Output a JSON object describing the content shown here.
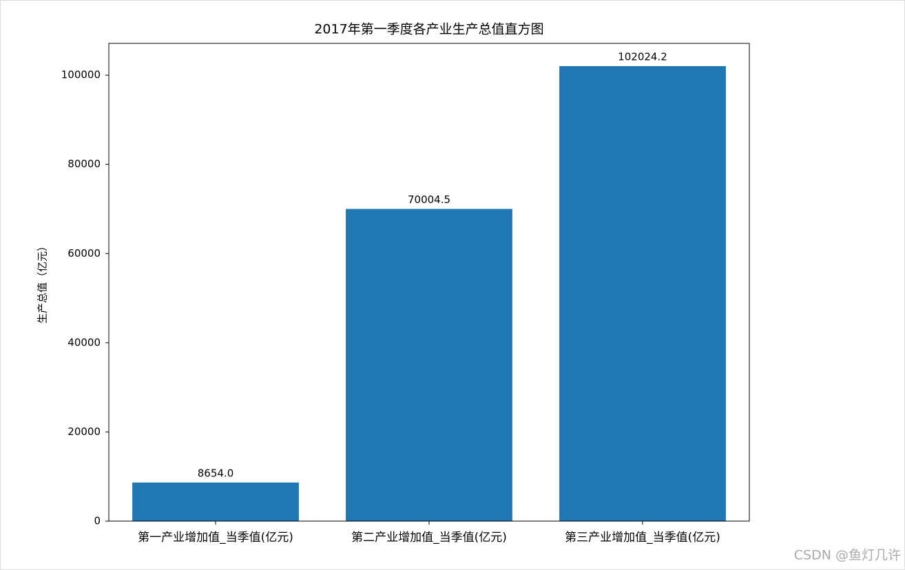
{
  "chart_data": {
    "type": "bar",
    "title": "2017年第一季度各产业生产总值直方图",
    "y_label": "生产总值（亿元）",
    "categories": [
      "第一产业增加值_当季值(亿元)",
      "第二产业增加值_当季值(亿元)",
      "第三产业增加值_当季值(亿元)"
    ],
    "values": [
      8654.0,
      70004.5,
      102024.2
    ],
    "value_labels": [
      "8654.0",
      "70004.5",
      "102024.2"
    ],
    "color": "#1f77b4",
    "ylim": [
      0,
      107125.41
    ],
    "yticks": [
      0,
      20000,
      40000,
      60000,
      80000,
      100000
    ],
    "grid": false
  },
  "watermark": "CSDN @鱼灯几许"
}
